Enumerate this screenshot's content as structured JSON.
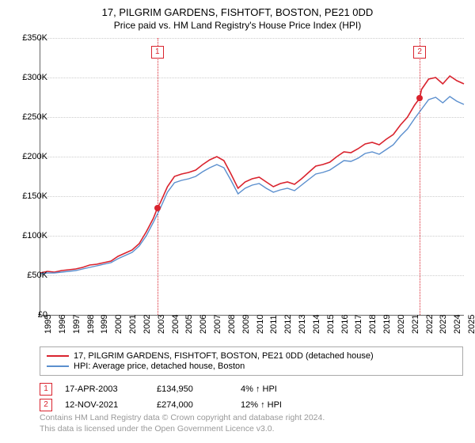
{
  "title": "17, PILGRIM GARDENS, FISHTOFT, BOSTON, PE21 0DD",
  "subtitle": "Price paid vs. HM Land Registry's House Price Index (HPI)",
  "chart": {
    "type": "line",
    "background_color": "#ffffff",
    "grid_color": "#cccccc",
    "axis_color": "#666666",
    "ylim": [
      0,
      350000
    ],
    "ytick_step": 50000,
    "y_labels": [
      "£0",
      "£50K",
      "£100K",
      "£150K",
      "£200K",
      "£250K",
      "£300K",
      "£350K"
    ],
    "x_years": [
      1995,
      1996,
      1997,
      1998,
      1999,
      2000,
      2001,
      2002,
      2003,
      2004,
      2005,
      2006,
      2007,
      2008,
      2009,
      2010,
      2011,
      2012,
      2013,
      2014,
      2015,
      2016,
      2017,
      2018,
      2019,
      2020,
      2021,
      2022,
      2023,
      2024,
      2025
    ],
    "series": [
      {
        "name": "price_paid",
        "label": "17, PILGRIM GARDENS, FISHTOFT, BOSTON, PE21 0DD (detached house)",
        "color": "#d9232e",
        "line_width": 1.6,
        "values": [
          [
            1995.0,
            53000
          ],
          [
            1995.5,
            55000
          ],
          [
            1996.0,
            54000
          ],
          [
            1996.5,
            56000
          ],
          [
            1997.0,
            57000
          ],
          [
            1997.5,
            58000
          ],
          [
            1998.0,
            60000
          ],
          [
            1998.5,
            63000
          ],
          [
            1999.0,
            64000
          ],
          [
            1999.5,
            66000
          ],
          [
            2000.0,
            68000
          ],
          [
            2000.5,
            74000
          ],
          [
            2001.0,
            78000
          ],
          [
            2001.5,
            82000
          ],
          [
            2002.0,
            90000
          ],
          [
            2002.5,
            105000
          ],
          [
            2003.0,
            122000
          ],
          [
            2003.29,
            134950
          ],
          [
            2003.5,
            142000
          ],
          [
            2004.0,
            162000
          ],
          [
            2004.5,
            175000
          ],
          [
            2005.0,
            178000
          ],
          [
            2005.5,
            180000
          ],
          [
            2006.0,
            183000
          ],
          [
            2006.5,
            190000
          ],
          [
            2007.0,
            196000
          ],
          [
            2007.5,
            200000
          ],
          [
            2008.0,
            195000
          ],
          [
            2008.5,
            178000
          ],
          [
            2009.0,
            160000
          ],
          [
            2009.5,
            168000
          ],
          [
            2010.0,
            172000
          ],
          [
            2010.5,
            174000
          ],
          [
            2011.0,
            168000
          ],
          [
            2011.5,
            162000
          ],
          [
            2012.0,
            166000
          ],
          [
            2012.5,
            168000
          ],
          [
            2013.0,
            165000
          ],
          [
            2013.5,
            172000
          ],
          [
            2014.0,
            180000
          ],
          [
            2014.5,
            188000
          ],
          [
            2015.0,
            190000
          ],
          [
            2015.5,
            193000
          ],
          [
            2016.0,
            200000
          ],
          [
            2016.5,
            206000
          ],
          [
            2017.0,
            205000
          ],
          [
            2017.5,
            210000
          ],
          [
            2018.0,
            216000
          ],
          [
            2018.5,
            218000
          ],
          [
            2019.0,
            215000
          ],
          [
            2019.5,
            222000
          ],
          [
            2020.0,
            228000
          ],
          [
            2020.5,
            240000
          ],
          [
            2021.0,
            250000
          ],
          [
            2021.5,
            265000
          ],
          [
            2021.87,
            274000
          ],
          [
            2022.0,
            285000
          ],
          [
            2022.5,
            298000
          ],
          [
            2023.0,
            300000
          ],
          [
            2023.5,
            292000
          ],
          [
            2024.0,
            302000
          ],
          [
            2024.5,
            296000
          ],
          [
            2025.0,
            292000
          ]
        ]
      },
      {
        "name": "hpi",
        "label": "HPI: Average price, detached house, Boston",
        "color": "#5b8fce",
        "line_width": 1.4,
        "values": [
          [
            1995.0,
            52000
          ],
          [
            1995.5,
            53000
          ],
          [
            1996.0,
            53000
          ],
          [
            1996.5,
            54000
          ],
          [
            1997.0,
            55000
          ],
          [
            1997.5,
            56000
          ],
          [
            1998.0,
            58000
          ],
          [
            1998.5,
            60000
          ],
          [
            1999.0,
            62000
          ],
          [
            1999.5,
            64000
          ],
          [
            2000.0,
            66000
          ],
          [
            2000.5,
            71000
          ],
          [
            2001.0,
            75000
          ],
          [
            2001.5,
            79000
          ],
          [
            2002.0,
            87000
          ],
          [
            2002.5,
            100000
          ],
          [
            2003.0,
            117000
          ],
          [
            2003.5,
            135000
          ],
          [
            2004.0,
            155000
          ],
          [
            2004.5,
            167000
          ],
          [
            2005.0,
            170000
          ],
          [
            2005.5,
            172000
          ],
          [
            2006.0,
            175000
          ],
          [
            2006.5,
            181000
          ],
          [
            2007.0,
            186000
          ],
          [
            2007.5,
            190000
          ],
          [
            2008.0,
            186000
          ],
          [
            2008.5,
            170000
          ],
          [
            2009.0,
            153000
          ],
          [
            2009.5,
            160000
          ],
          [
            2010.0,
            164000
          ],
          [
            2010.5,
            166000
          ],
          [
            2011.0,
            160000
          ],
          [
            2011.5,
            155000
          ],
          [
            2012.0,
            158000
          ],
          [
            2012.5,
            160000
          ],
          [
            2013.0,
            157000
          ],
          [
            2013.5,
            164000
          ],
          [
            2014.0,
            171000
          ],
          [
            2014.5,
            178000
          ],
          [
            2015.0,
            180000
          ],
          [
            2015.5,
            183000
          ],
          [
            2016.0,
            189000
          ],
          [
            2016.5,
            195000
          ],
          [
            2017.0,
            194000
          ],
          [
            2017.5,
            198000
          ],
          [
            2018.0,
            204000
          ],
          [
            2018.5,
            206000
          ],
          [
            2019.0,
            203000
          ],
          [
            2019.5,
            209000
          ],
          [
            2020.0,
            215000
          ],
          [
            2020.5,
            226000
          ],
          [
            2021.0,
            235000
          ],
          [
            2021.5,
            248000
          ],
          [
            2022.0,
            260000
          ],
          [
            2022.5,
            272000
          ],
          [
            2023.0,
            275000
          ],
          [
            2023.5,
            268000
          ],
          [
            2024.0,
            276000
          ],
          [
            2024.5,
            270000
          ],
          [
            2025.0,
            266000
          ]
        ]
      }
    ],
    "markers": [
      {
        "num": "1",
        "year": 2003.29,
        "value": 134950,
        "box_top": 10
      },
      {
        "num": "2",
        "year": 2021.87,
        "value": 274000,
        "box_top": 10
      }
    ]
  },
  "legend": {
    "rows": [
      {
        "color": "#d9232e",
        "label": "17, PILGRIM GARDENS, FISHTOFT, BOSTON, PE21 0DD (detached house)"
      },
      {
        "color": "#5b8fce",
        "label": "HPI: Average price, detached house, Boston"
      }
    ]
  },
  "data_points": [
    {
      "num": "1",
      "date": "17-APR-2003",
      "price": "£134,950",
      "pct": "4%",
      "arrow": "↑",
      "suffix": "HPI"
    },
    {
      "num": "2",
      "date": "12-NOV-2021",
      "price": "£274,000",
      "pct": "12%",
      "arrow": "↑",
      "suffix": "HPI"
    }
  ],
  "copyright_line1": "Contains HM Land Registry data © Crown copyright and database right 2024.",
  "copyright_line2": "This data is licensed under the Open Government Licence v3.0."
}
